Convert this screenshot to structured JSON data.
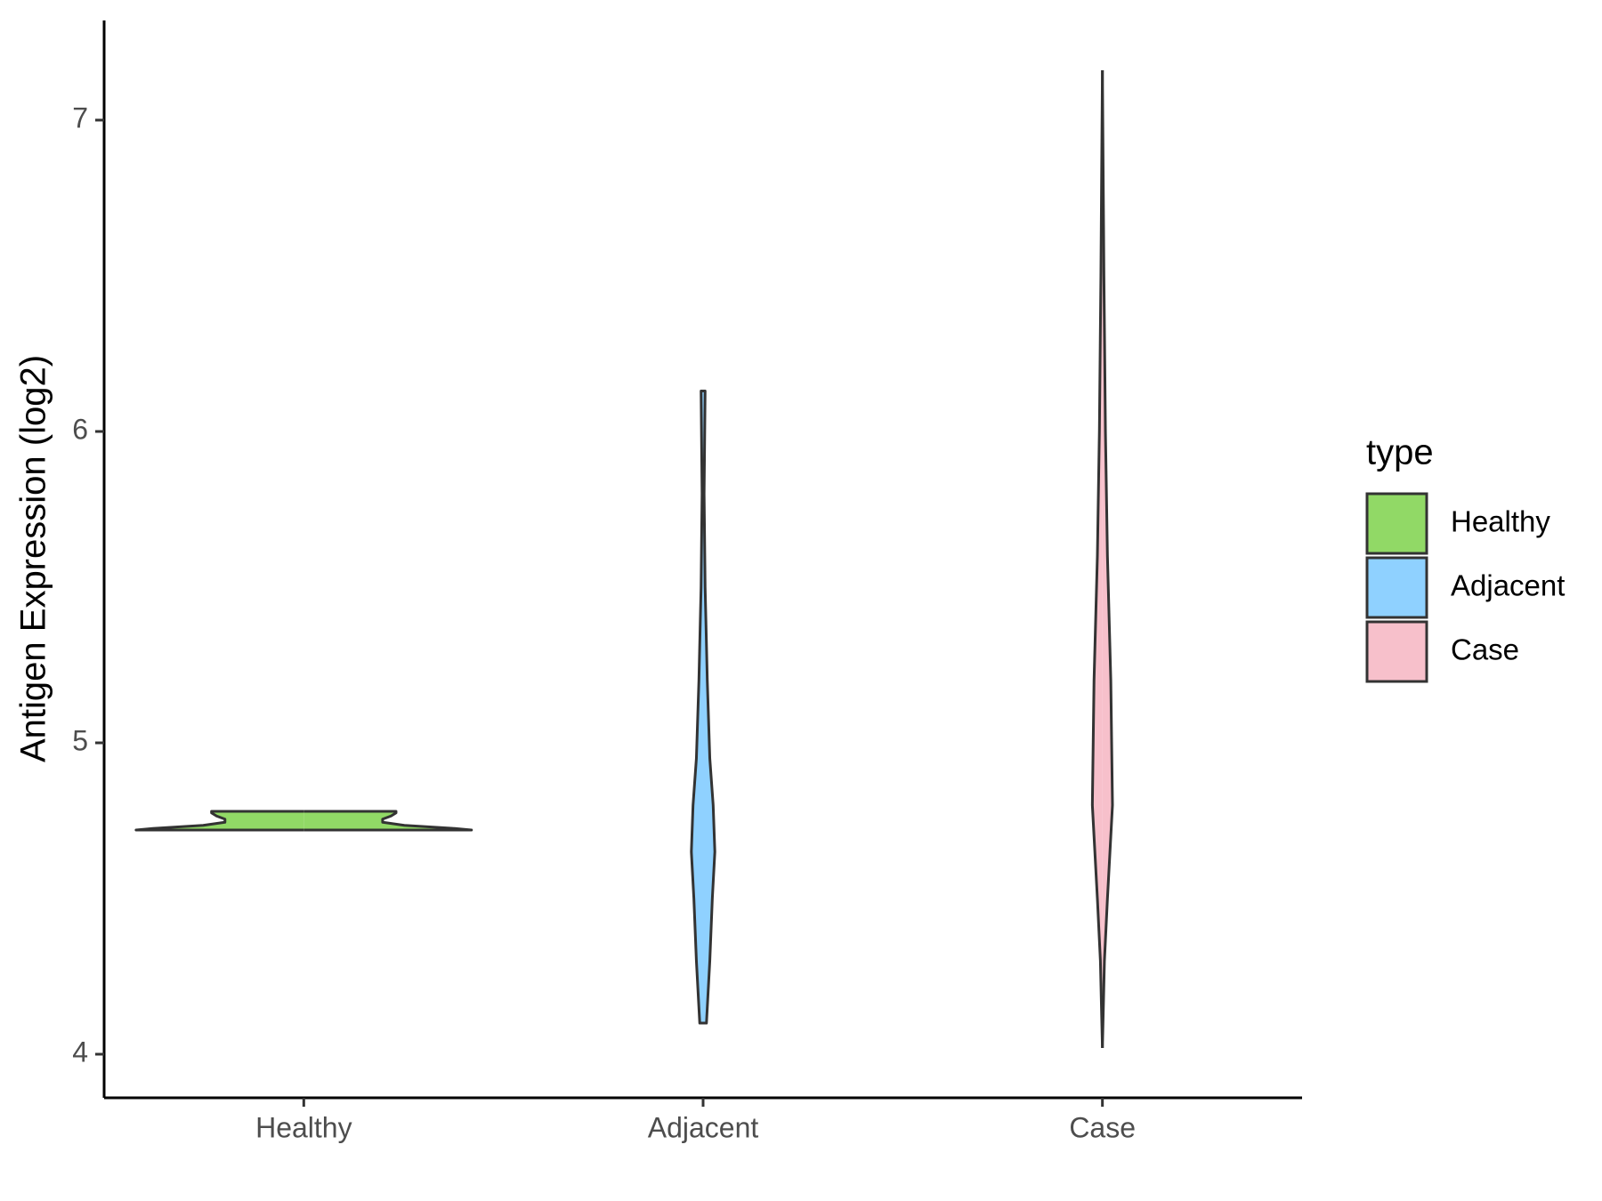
{
  "chart_data": {
    "type": "violin",
    "y_label": "Antigen Expression (log2)",
    "categories": [
      "Healthy",
      "Adjacent",
      "Case"
    ],
    "legend_title": "type",
    "series": [
      {
        "name": "Healthy",
        "color": "#91d966",
        "y": [
          4.72,
          4.72,
          4.725,
          4.735,
          4.745,
          4.755,
          4.765,
          4.775,
          4.78,
          4.78
        ],
        "width": [
          0,
          1.0,
          0.9,
          0.6,
          0.47,
          0.47,
          0.52,
          0.55,
          0.55,
          0
        ]
      },
      {
        "name": "Adjacent",
        "color": "#8fd1ff",
        "y": [
          4.1,
          4.1,
          4.3,
          4.5,
          4.65,
          4.8,
          4.95,
          5.2,
          5.5,
          5.8,
          6.13,
          6.13
        ],
        "width": [
          0,
          0.02,
          0.04,
          0.055,
          0.07,
          0.06,
          0.04,
          0.025,
          0.012,
          0.006,
          0.012,
          0
        ]
      },
      {
        "name": "Case",
        "color": "#f7c0cb",
        "y": [
          4.02,
          4.3,
          4.5,
          4.8,
          5.2,
          5.6,
          6.0,
          6.5,
          7.16
        ],
        "width": [
          0,
          0.012,
          0.03,
          0.06,
          0.05,
          0.03,
          0.018,
          0.009,
          0
        ]
      }
    ],
    "ylim": [
      3.86,
      7.32
    ],
    "yticks": [
      4,
      5,
      6,
      7
    ]
  }
}
